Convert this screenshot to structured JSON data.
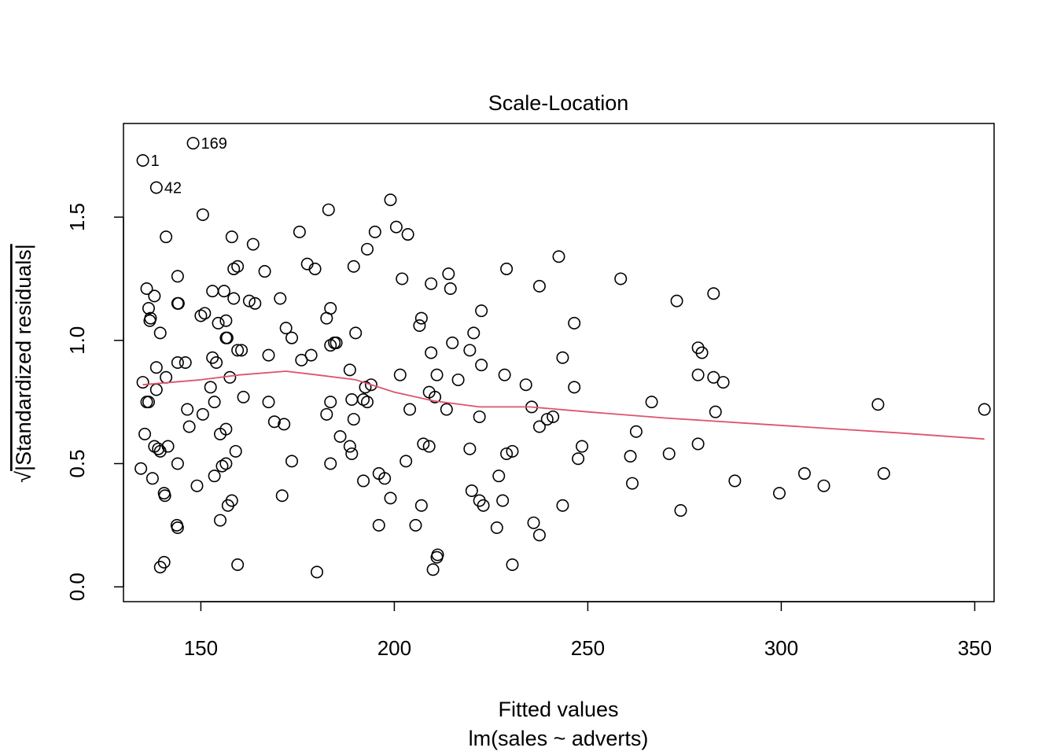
{
  "chart_data": {
    "type": "scatter",
    "title": "Scale-Location",
    "xlabel": "Fitted values",
    "xsublabel": "lm(sales ~ adverts)",
    "ylabel_sqrt": "√",
    "ylabel": "|Standardized residuals|",
    "xlim": [
      130,
      355
    ],
    "ylim": [
      -0.06,
      1.88
    ],
    "xticks": [
      150,
      200,
      250,
      300,
      350
    ],
    "yticks": [
      0.0,
      0.5,
      1.0,
      1.5
    ],
    "xtick_labels": [
      "150",
      "200",
      "250",
      "300",
      "350"
    ],
    "ytick_labels": [
      "0.0",
      "0.5",
      "1.0",
      "1.5"
    ],
    "smoother_color": "#DF536B",
    "point_labels": [
      {
        "id": "169",
        "x": 148.0,
        "y": 1.8
      },
      {
        "id": "1",
        "x": 135.0,
        "y": 1.73
      },
      {
        "id": "42",
        "x": 138.5,
        "y": 1.62
      }
    ],
    "points": [
      [
        148.0,
        1.8
      ],
      [
        135.0,
        1.73
      ],
      [
        138.5,
        1.62
      ],
      [
        150.5,
        1.51
      ],
      [
        141.0,
        1.42
      ],
      [
        158.0,
        1.42
      ],
      [
        163.5,
        1.39
      ],
      [
        175.5,
        1.44
      ],
      [
        183.0,
        1.53
      ],
      [
        195.0,
        1.44
      ],
      [
        199.0,
        1.57
      ],
      [
        200.5,
        1.46
      ],
      [
        203.5,
        1.43
      ],
      [
        193.0,
        1.37
      ],
      [
        136.0,
        1.21
      ],
      [
        138.0,
        1.18
      ],
      [
        144.0,
        1.26
      ],
      [
        153.0,
        1.2
      ],
      [
        156.0,
        1.2
      ],
      [
        158.5,
        1.29
      ],
      [
        159.5,
        1.3
      ],
      [
        166.5,
        1.28
      ],
      [
        177.5,
        1.31
      ],
      [
        179.5,
        1.29
      ],
      [
        189.5,
        1.3
      ],
      [
        202.0,
        1.25
      ],
      [
        209.5,
        1.23
      ],
      [
        214.0,
        1.27
      ],
      [
        214.5,
        1.21
      ],
      [
        229.0,
        1.29
      ],
      [
        237.5,
        1.22
      ],
      [
        242.5,
        1.34
      ],
      [
        258.5,
        1.25
      ],
      [
        273.0,
        1.16
      ],
      [
        282.5,
        1.19
      ],
      [
        136.5,
        1.13
      ],
      [
        137.0,
        1.09
      ],
      [
        136.8,
        1.08
      ],
      [
        139.5,
        1.03
      ],
      [
        144.0,
        1.15
      ],
      [
        144.2,
        1.15
      ],
      [
        150.0,
        1.1
      ],
      [
        151.0,
        1.11
      ],
      [
        154.5,
        1.07
      ],
      [
        156.5,
        1.08
      ],
      [
        158.5,
        1.17
      ],
      [
        162.5,
        1.16
      ],
      [
        164.0,
        1.15
      ],
      [
        170.5,
        1.17
      ],
      [
        172.0,
        1.05
      ],
      [
        173.5,
        1.01
      ],
      [
        182.5,
        1.09
      ],
      [
        183.5,
        1.13
      ],
      [
        190.0,
        1.03
      ],
      [
        207.0,
        1.09
      ],
      [
        206.5,
        1.06
      ],
      [
        222.5,
        1.12
      ],
      [
        220.5,
        1.03
      ],
      [
        246.5,
        1.07
      ],
      [
        138.5,
        0.89
      ],
      [
        141.0,
        0.85
      ],
      [
        144.0,
        0.91
      ],
      [
        146.0,
        0.91
      ],
      [
        153.0,
        0.93
      ],
      [
        154.0,
        0.91
      ],
      [
        156.5,
        1.01
      ],
      [
        156.8,
        1.01
      ],
      [
        159.5,
        0.96
      ],
      [
        160.5,
        0.96
      ],
      [
        157.5,
        0.85
      ],
      [
        167.5,
        0.94
      ],
      [
        176.0,
        0.92
      ],
      [
        178.5,
        0.94
      ],
      [
        183.5,
        0.98
      ],
      [
        184.5,
        0.99
      ],
      [
        185.0,
        0.99
      ],
      [
        188.5,
        0.88
      ],
      [
        201.5,
        0.86
      ],
      [
        209.5,
        0.95
      ],
      [
        211.0,
        0.86
      ],
      [
        215.0,
        0.99
      ],
      [
        216.5,
        0.84
      ],
      [
        219.5,
        0.96
      ],
      [
        222.5,
        0.9
      ],
      [
        228.5,
        0.86
      ],
      [
        243.5,
        0.93
      ],
      [
        278.5,
        0.97
      ],
      [
        279.5,
        0.95
      ],
      [
        278.5,
        0.86
      ],
      [
        282.5,
        0.85
      ],
      [
        285.0,
        0.83
      ],
      [
        135.0,
        0.83
      ],
      [
        138.5,
        0.8
      ],
      [
        136.0,
        0.75
      ],
      [
        136.5,
        0.75
      ],
      [
        146.5,
        0.72
      ],
      [
        150.5,
        0.7
      ],
      [
        152.5,
        0.81
      ],
      [
        153.5,
        0.75
      ],
      [
        161.0,
        0.77
      ],
      [
        167.5,
        0.75
      ],
      [
        182.5,
        0.7
      ],
      [
        183.5,
        0.75
      ],
      [
        189.0,
        0.76
      ],
      [
        189.5,
        0.68
      ],
      [
        192.0,
        0.76
      ],
      [
        192.5,
        0.81
      ],
      [
        194.0,
        0.82
      ],
      [
        193.0,
        0.75
      ],
      [
        204.0,
        0.72
      ],
      [
        209.0,
        0.79
      ],
      [
        210.5,
        0.77
      ],
      [
        213.5,
        0.72
      ],
      [
        222.0,
        0.69
      ],
      [
        234.0,
        0.82
      ],
      [
        235.5,
        0.73
      ],
      [
        237.5,
        0.65
      ],
      [
        239.5,
        0.68
      ],
      [
        241.0,
        0.69
      ],
      [
        246.5,
        0.81
      ],
      [
        266.5,
        0.75
      ],
      [
        283.0,
        0.71
      ],
      [
        325.0,
        0.74
      ],
      [
        352.5,
        0.72
      ],
      [
        135.5,
        0.62
      ],
      [
        138.0,
        0.57
      ],
      [
        139.0,
        0.56
      ],
      [
        139.5,
        0.55
      ],
      [
        141.5,
        0.57
      ],
      [
        147.0,
        0.65
      ],
      [
        155.0,
        0.62
      ],
      [
        156.5,
        0.64
      ],
      [
        159.0,
        0.55
      ],
      [
        169.0,
        0.67
      ],
      [
        171.5,
        0.66
      ],
      [
        186.0,
        0.61
      ],
      [
        188.5,
        0.57
      ],
      [
        189.0,
        0.54
      ],
      [
        207.5,
        0.58
      ],
      [
        209.0,
        0.57
      ],
      [
        219.5,
        0.56
      ],
      [
        229.0,
        0.54
      ],
      [
        230.5,
        0.55
      ],
      [
        248.5,
        0.57
      ],
      [
        262.5,
        0.63
      ],
      [
        271.0,
        0.54
      ],
      [
        278.5,
        0.58
      ],
      [
        134.5,
        0.48
      ],
      [
        137.5,
        0.44
      ],
      [
        140.5,
        0.38
      ],
      [
        140.7,
        0.37
      ],
      [
        144.0,
        0.5
      ],
      [
        149.0,
        0.41
      ],
      [
        153.5,
        0.45
      ],
      [
        155.5,
        0.49
      ],
      [
        156.5,
        0.5
      ],
      [
        158.0,
        0.35
      ],
      [
        157.0,
        0.33
      ],
      [
        171.0,
        0.37
      ],
      [
        173.5,
        0.51
      ],
      [
        183.5,
        0.5
      ],
      [
        192.0,
        0.43
      ],
      [
        196.0,
        0.46
      ],
      [
        197.5,
        0.44
      ],
      [
        199.0,
        0.36
      ],
      [
        203.0,
        0.51
      ],
      [
        207.0,
        0.33
      ],
      [
        220.0,
        0.39
      ],
      [
        222.0,
        0.35
      ],
      [
        223.0,
        0.33
      ],
      [
        227.0,
        0.45
      ],
      [
        228.0,
        0.35
      ],
      [
        243.5,
        0.33
      ],
      [
        247.5,
        0.52
      ],
      [
        261.5,
        0.42
      ],
      [
        261.0,
        0.53
      ],
      [
        288.0,
        0.43
      ],
      [
        299.5,
        0.38
      ],
      [
        306.0,
        0.46
      ],
      [
        311.0,
        0.41
      ],
      [
        326.5,
        0.46
      ],
      [
        144.0,
        0.24
      ],
      [
        143.8,
        0.25
      ],
      [
        155.0,
        0.27
      ],
      [
        196.0,
        0.25
      ],
      [
        205.5,
        0.25
      ],
      [
        226.5,
        0.24
      ],
      [
        236.0,
        0.26
      ],
      [
        237.5,
        0.21
      ],
      [
        274.0,
        0.31
      ],
      [
        139.5,
        0.08
      ],
      [
        140.5,
        0.1
      ],
      [
        159.5,
        0.09
      ],
      [
        180.0,
        0.06
      ],
      [
        210.0,
        0.07
      ],
      [
        211.0,
        0.12
      ],
      [
        211.2,
        0.13
      ],
      [
        230.5,
        0.09
      ]
    ],
    "lowess": [
      [
        135,
        0.82
      ],
      [
        150,
        0.84
      ],
      [
        160,
        0.86
      ],
      [
        172,
        0.875
      ],
      [
        180,
        0.86
      ],
      [
        190,
        0.84
      ],
      [
        200,
        0.79
      ],
      [
        210,
        0.755
      ],
      [
        222,
        0.73
      ],
      [
        235,
        0.73
      ],
      [
        250,
        0.71
      ],
      [
        270,
        0.685
      ],
      [
        290,
        0.665
      ],
      [
        310,
        0.645
      ],
      [
        330,
        0.625
      ],
      [
        352.5,
        0.6
      ]
    ]
  }
}
